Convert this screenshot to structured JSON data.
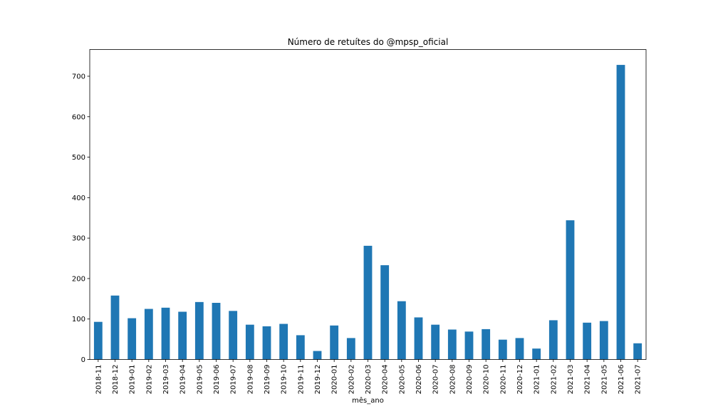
{
  "chart_data": {
    "type": "bar",
    "title": "Número de retuítes do @mpsp_oficial",
    "xlabel": "mês_ano",
    "ylabel": "",
    "ylim": [
      0,
      766
    ],
    "yticks": [
      0,
      100,
      200,
      300,
      400,
      500,
      600,
      700
    ],
    "grid": false,
    "legend": "none",
    "bar_color": "#1f77b4",
    "categories": [
      "2018-11",
      "2018-12",
      "2019-01",
      "2019-02",
      "2019-03",
      "2019-04",
      "2019-05",
      "2019-06",
      "2019-07",
      "2019-08",
      "2019-09",
      "2019-10",
      "2019-11",
      "2019-12",
      "2020-01",
      "2020-02",
      "2020-03",
      "2020-04",
      "2020-05",
      "2020-06",
      "2020-07",
      "2020-08",
      "2020-09",
      "2020-10",
      "2020-11",
      "2020-12",
      "2021-01",
      "2021-02",
      "2021-03",
      "2021-04",
      "2021-05",
      "2021-06",
      "2021-07"
    ],
    "values": [
      93,
      158,
      102,
      125,
      128,
      118,
      142,
      140,
      120,
      86,
      82,
      88,
      60,
      21,
      84,
      53,
      281,
      233,
      144,
      104,
      86,
      74,
      69,
      75,
      49,
      53,
      27,
      97,
      344,
      91,
      95,
      728,
      40
    ]
  }
}
